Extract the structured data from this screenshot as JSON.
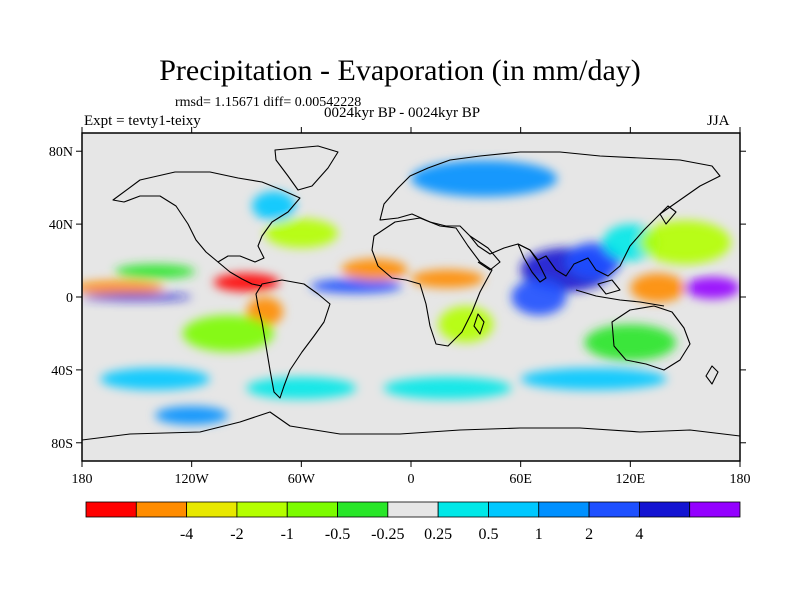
{
  "title": "Precipitation - Evaporation (in mm/day)",
  "stats": "rmsd= 1.15671 diff= 0.00542228",
  "experiment": "Expt = tevty1-teixy",
  "period": "0024kyr BP - 0024kyr BP",
  "season": "JJA",
  "colors": {
    "background": "#e6e6e6",
    "coastline": "#000000"
  },
  "axes": {
    "lat_ticks": [
      {
        "value": 80,
        "label": "80N"
      },
      {
        "value": 40,
        "label": "40N"
      },
      {
        "value": 0,
        "label": "0"
      },
      {
        "value": -40,
        "label": "40S"
      },
      {
        "value": -80,
        "label": "80S"
      }
    ],
    "lon_ticks": [
      {
        "value": -180,
        "label": "180"
      },
      {
        "value": -120,
        "label": "120W"
      },
      {
        "value": -60,
        "label": "60W"
      },
      {
        "value": 0,
        "label": "0"
      },
      {
        "value": 60,
        "label": "60E"
      },
      {
        "value": 120,
        "label": "120E"
      },
      {
        "value": 180,
        "label": "180"
      }
    ]
  },
  "colorbar": {
    "colors": [
      "#ff0000",
      "#ff8c00",
      "#e8e800",
      "#b4ff00",
      "#7cfc00",
      "#28e628",
      "#e6e6e6",
      "#00e8e8",
      "#00c8ff",
      "#0090ff",
      "#1e50ff",
      "#1414d2",
      "#9400ff"
    ],
    "labels": [
      "-4",
      "-2",
      "-1",
      "-0.5",
      "-0.25",
      "0.25",
      "0.5",
      "1",
      "2",
      "4"
    ]
  },
  "field_blobs": [
    {
      "lon": -160,
      "lat": 5,
      "rx": 25,
      "ry": 4,
      "color": "#ff8c00"
    },
    {
      "lon": -150,
      "lat": 0,
      "rx": 30,
      "ry": 2,
      "color": "#1414d2"
    },
    {
      "lon": -140,
      "lat": 14,
      "rx": 22,
      "ry": 4,
      "color": "#28e628"
    },
    {
      "lon": -90,
      "lat": 8,
      "rx": 18,
      "ry": 5,
      "color": "#ff0000"
    },
    {
      "lon": -80,
      "lat": -8,
      "rx": 10,
      "ry": 8,
      "color": "#ff8c00"
    },
    {
      "lon": -30,
      "lat": 6,
      "rx": 25,
      "ry": 4,
      "color": "#1e50ff"
    },
    {
      "lon": -20,
      "lat": 15,
      "rx": 18,
      "ry": 6,
      "color": "#ff8c00"
    },
    {
      "lon": -60,
      "lat": 35,
      "rx": 20,
      "ry": 8,
      "color": "#b4ff00"
    },
    {
      "lon": -75,
      "lat": 50,
      "rx": 12,
      "ry": 8,
      "color": "#00c8ff"
    },
    {
      "lon": 40,
      "lat": 65,
      "rx": 40,
      "ry": 10,
      "color": "#0090ff"
    },
    {
      "lon": 20,
      "lat": 10,
      "rx": 20,
      "ry": 5,
      "color": "#ff8c00"
    },
    {
      "lon": 30,
      "lat": -15,
      "rx": 15,
      "ry": 10,
      "color": "#b4ff00"
    },
    {
      "lon": 85,
      "lat": 15,
      "rx": 25,
      "ry": 12,
      "color": "#1414d2"
    },
    {
      "lon": 70,
      "lat": 0,
      "rx": 15,
      "ry": 10,
      "color": "#1e50ff"
    },
    {
      "lon": 100,
      "lat": 20,
      "rx": 15,
      "ry": 10,
      "color": "#1e50ff"
    },
    {
      "lon": 135,
      "lat": 5,
      "rx": 15,
      "ry": 8,
      "color": "#ff8c00"
    },
    {
      "lon": 165,
      "lat": 5,
      "rx": 15,
      "ry": 6,
      "color": "#9400ff"
    },
    {
      "lon": 120,
      "lat": 30,
      "rx": 15,
      "ry": 10,
      "color": "#00e8e8"
    },
    {
      "lon": 150,
      "lat": 30,
      "rx": 25,
      "ry": 12,
      "color": "#b4ff00"
    },
    {
      "lon": -140,
      "lat": -45,
      "rx": 30,
      "ry": 6,
      "color": "#00c8ff"
    },
    {
      "lon": -60,
      "lat": -50,
      "rx": 30,
      "ry": 6,
      "color": "#00e8e8"
    },
    {
      "lon": 20,
      "lat": -50,
      "rx": 35,
      "ry": 6,
      "color": "#00e8e8"
    },
    {
      "lon": 100,
      "lat": -45,
      "rx": 40,
      "ry": 6,
      "color": "#00c8ff"
    },
    {
      "lon": -120,
      "lat": -65,
      "rx": 20,
      "ry": 5,
      "color": "#0090ff"
    },
    {
      "lon": 120,
      "lat": -25,
      "rx": 25,
      "ry": 10,
      "color": "#28e628"
    },
    {
      "lon": -100,
      "lat": -20,
      "rx": 25,
      "ry": 10,
      "color": "#7cfc00"
    }
  ]
}
